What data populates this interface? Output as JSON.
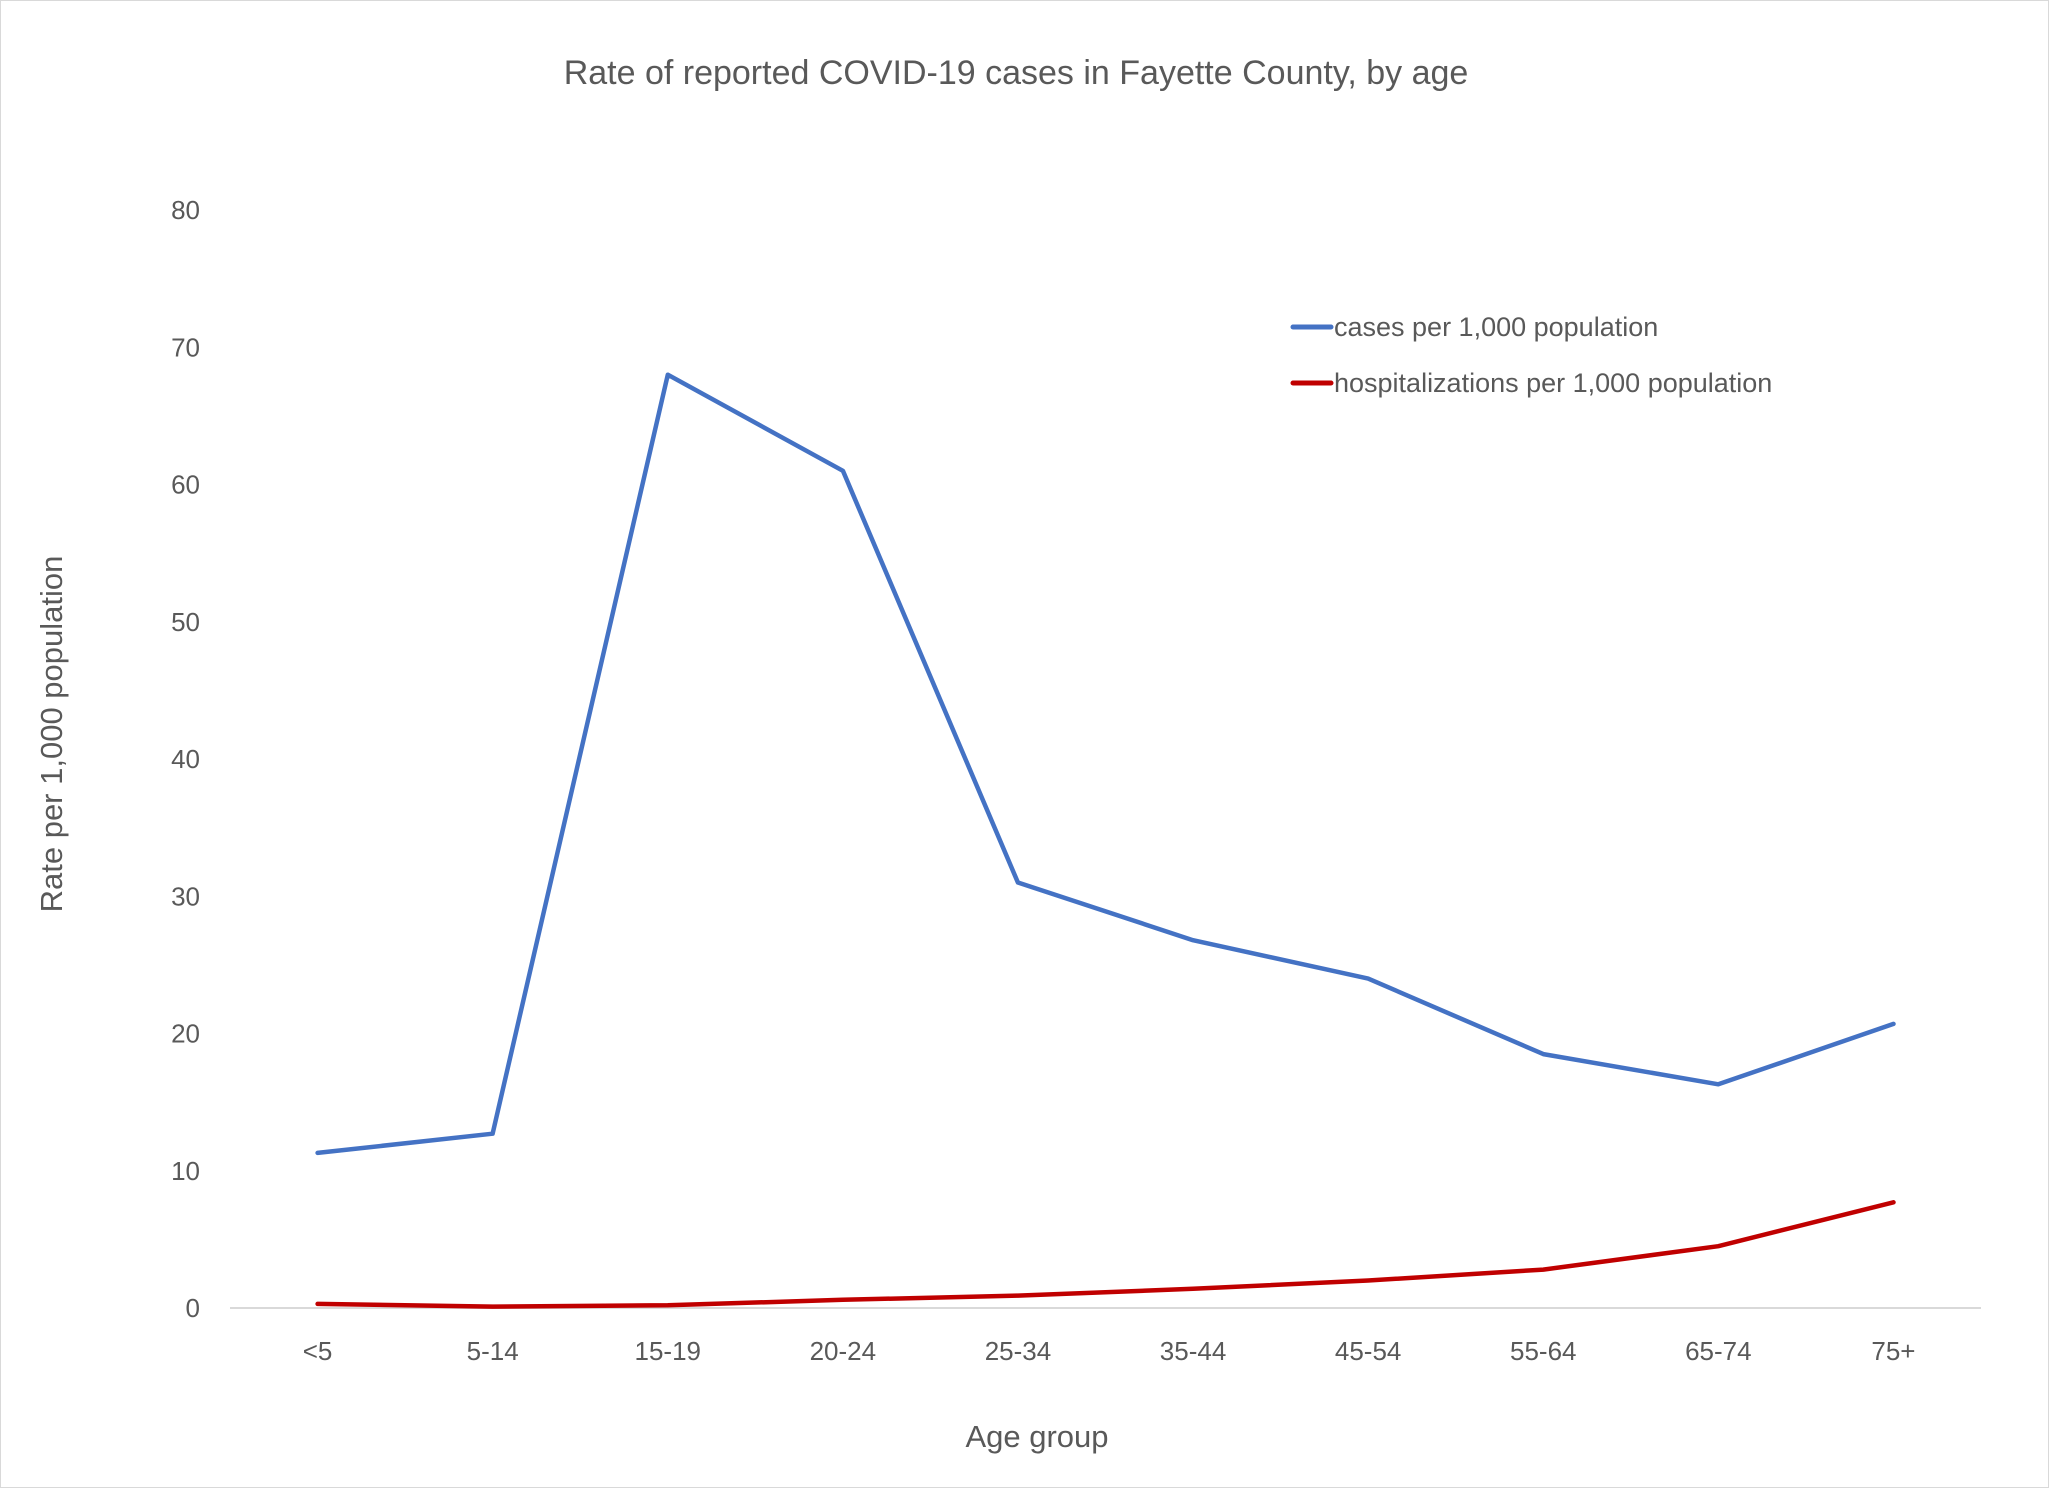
{
  "chart_data": {
    "type": "line",
    "title": "Rate of reported COVID-19 cases in Fayette County, by age",
    "xlabel": "Age group",
    "ylabel": "Rate per 1,000 population",
    "categories": [
      "<5",
      "5-14",
      "15-19",
      "20-24",
      "25-34",
      "35-44",
      "45-54",
      "55-64",
      "65-74",
      "75+"
    ],
    "ylim": [
      0,
      80
    ],
    "yticks": [
      0,
      10,
      20,
      30,
      40,
      50,
      60,
      70,
      80
    ],
    "grid": false,
    "legend_position": "top-right",
    "series": [
      {
        "name": "cases per 1,000 population",
        "color": "#4472C4",
        "values": [
          11.3,
          12.7,
          68.0,
          61.0,
          31.0,
          26.8,
          24.0,
          18.5,
          16.3,
          20.7
        ]
      },
      {
        "name": "hospitalizations per 1,000 population",
        "color": "#C00000",
        "values": [
          0.3,
          0.1,
          0.2,
          0.6,
          0.9,
          1.4,
          2.0,
          2.8,
          4.5,
          7.7
        ]
      }
    ]
  }
}
